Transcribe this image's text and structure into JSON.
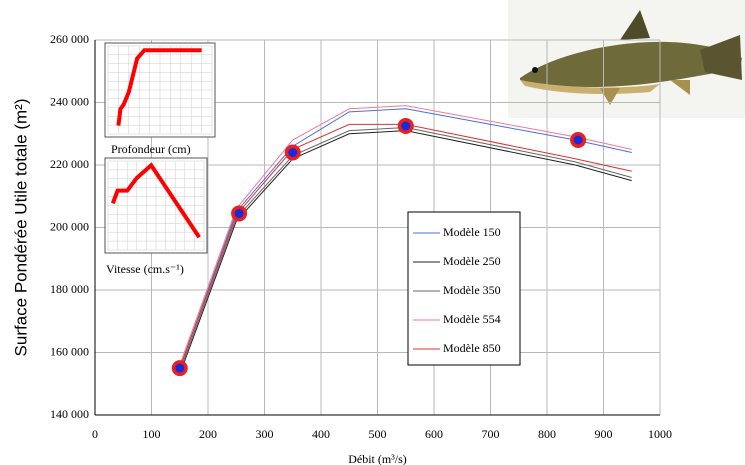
{
  "chart_data": [
    {
      "type": "line",
      "x_label": "Débit (m³/s)",
      "y_label": "Surface Pondérée Utile totale (m²)",
      "x": [
        150,
        250,
        350,
        450,
        550,
        850,
        950
      ],
      "series": [
        {
          "name": "Modèle 150",
          "color": "#4a6fe0",
          "values": [
            155000,
            205000,
            226000,
            237000,
            238000,
            228000,
            224000
          ]
        },
        {
          "name": "Modèle 250",
          "color": "#222222",
          "values": [
            153000,
            202000,
            222000,
            230000,
            231000,
            220000,
            215000
          ]
        },
        {
          "name": "Modèle 350",
          "color": "#666666",
          "values": [
            154000,
            203000,
            223000,
            231000,
            232000,
            221000,
            216000
          ]
        },
        {
          "name": "Modèle 554",
          "color": "#f07aa0",
          "values": [
            156000,
            206000,
            228000,
            238000,
            239000,
            229000,
            225000
          ]
        },
        {
          "name": "Modèle 850",
          "color": "#e03030",
          "values": [
            155000,
            204000,
            225000,
            233000,
            233000,
            222000,
            218000
          ]
        }
      ],
      "highlights": {
        "x": [
          150,
          255,
          350,
          550,
          855
        ],
        "values": [
          155000,
          204500,
          224000,
          232500,
          228000
        ],
        "color": "#e82020",
        "inner_color": "#1a2ad8"
      },
      "xlim": [
        0,
        1000
      ],
      "ylim": [
        140000,
        260000
      ],
      "xticks": [
        0,
        100,
        200,
        300,
        400,
        500,
        600,
        700,
        800,
        900,
        1000
      ],
      "yticks": [
        {
          "value": 140000,
          "label": "140 000"
        },
        {
          "value": 160000,
          "label": "160 000"
        },
        {
          "value": 180000,
          "label": "180 000"
        },
        {
          "value": 200000,
          "label": "200 000"
        },
        {
          "value": 220000,
          "label": "220 000"
        },
        {
          "value": 240000,
          "label": "240 000"
        },
        {
          "value": 260000,
          "label": "260 000"
        }
      ],
      "grid": true
    },
    {
      "type": "line",
      "title": "Profondeur (cm)",
      "color": "#ff0000",
      "x": [
        10,
        12,
        15,
        20,
        28,
        35,
        90
      ],
      "values": [
        0.1,
        0.3,
        0.35,
        0.5,
        0.9,
        1.0,
        1.0
      ],
      "xlim": [
        0,
        100
      ],
      "ylim": [
        0,
        1.05
      ]
    },
    {
      "type": "line",
      "title": "Vitesse (cm.s⁻¹)",
      "color": "#ff0000",
      "x": [
        5,
        10,
        20,
        30,
        45,
        95
      ],
      "values": [
        0.55,
        0.7,
        0.7,
        0.85,
        1.0,
        0.15
      ],
      "xlim": [
        0,
        100
      ],
      "ylim": [
        0,
        1.05
      ]
    }
  ]
}
